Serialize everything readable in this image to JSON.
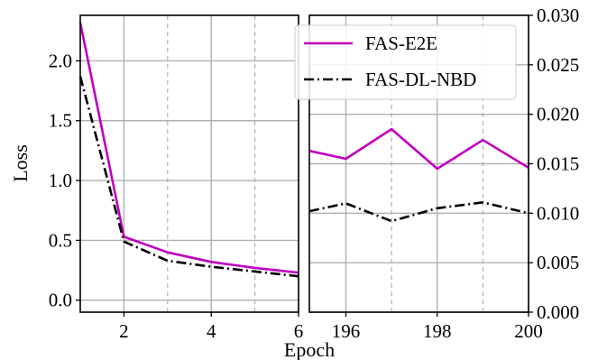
{
  "chart_data": [
    {
      "type": "line",
      "panel": "left",
      "ylabel": "Loss",
      "xlim": [
        1,
        6
      ],
      "ylim": [
        -0.1,
        2.38
      ],
      "xticks": [
        2,
        4,
        6
      ],
      "yticks": [
        0.0,
        0.5,
        1.0,
        1.5,
        2.0
      ],
      "ytick_labels": [
        "0.0",
        "0.5",
        "1.0",
        "1.5",
        "2.0"
      ],
      "xtick_labels": [
        "2",
        "4",
        "6"
      ],
      "grid_solid_x": [
        2,
        4,
        6
      ],
      "grid_dashed_x": [
        3,
        5
      ],
      "grid": true,
      "x": [
        1,
        2,
        3,
        4,
        5,
        6
      ],
      "series": [
        {
          "name": "FAS-E2E",
          "color": "#bf00bf",
          "dash": "solid",
          "values": [
            2.32,
            0.53,
            0.4,
            0.32,
            0.27,
            0.23
          ]
        },
        {
          "name": "FAS-DL-NBD",
          "color": "#000000",
          "dash": "dashdot",
          "values": [
            1.87,
            0.49,
            0.33,
            0.28,
            0.24,
            0.2
          ]
        }
      ]
    },
    {
      "type": "line",
      "panel": "right",
      "xlim": [
        195.2,
        200
      ],
      "ylim": [
        0.0,
        0.03
      ],
      "xticks": [
        196,
        198,
        200
      ],
      "xtick_labels": [
        "196",
        "198",
        "200"
      ],
      "yticks": [
        0.0,
        0.005,
        0.01,
        0.015,
        0.02,
        0.025,
        0.03
      ],
      "ytick_labels": [
        "0.000",
        "0.005",
        "0.010",
        "0.015",
        "0.020",
        "0.025",
        "0.030"
      ],
      "yaxis_side": "right",
      "grid_solid_x": [
        196,
        198,
        200
      ],
      "grid_dashed_x": [
        197,
        199
      ],
      "grid": true,
      "x": [
        195.2,
        196,
        197,
        198,
        199,
        200
      ],
      "series": [
        {
          "name": "FAS-E2E",
          "color": "#bf00bf",
          "dash": "solid",
          "values": [
            0.0163,
            0.0155,
            0.0185,
            0.0145,
            0.0174,
            0.0146
          ]
        },
        {
          "name": "FAS-DL-NBD",
          "color": "#000000",
          "dash": "dashdot",
          "values": [
            0.0102,
            0.011,
            0.0092,
            0.0105,
            0.0111,
            0.01
          ]
        }
      ]
    }
  ],
  "xlabel": "Epoch",
  "legend": {
    "placement": "top-right",
    "entries": [
      {
        "label": "FAS-E2E",
        "color": "#bf00bf",
        "dash": "solid"
      },
      {
        "label": "FAS-DL-NBD",
        "color": "#000000",
        "dash": "dashdot"
      }
    ]
  }
}
